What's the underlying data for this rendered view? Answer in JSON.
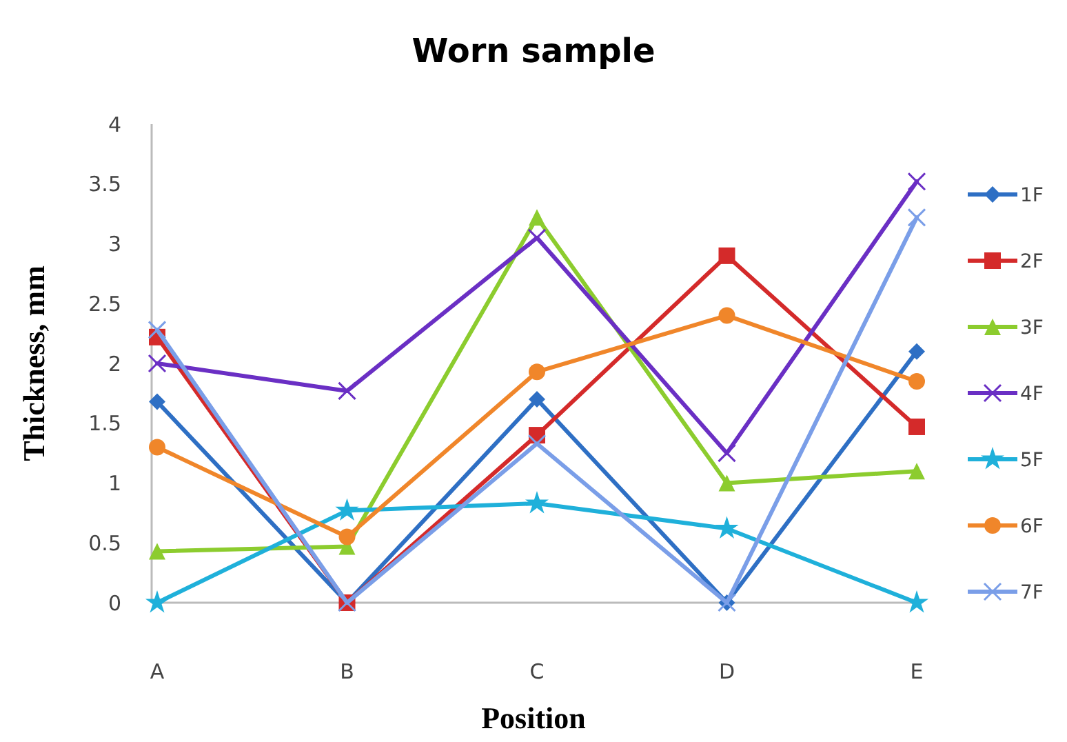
{
  "chart_data": {
    "type": "line",
    "title": "Worn sample",
    "xlabel": "Position",
    "ylabel": "Thickness, mm",
    "categories": [
      "A",
      "B",
      "C",
      "D",
      "E"
    ],
    "ylim": [
      0,
      4
    ],
    "yticks": [
      0,
      {
        "value": 0.5,
        "label": "0.5"
      },
      1,
      {
        "value": 1.5,
        "label": "1.5"
      },
      2,
      {
        "value": 2.5,
        "label": "2.5"
      },
      3,
      {
        "value": 3.5,
        "label": "3.5"
      },
      4
    ],
    "grid": false,
    "legend": "right",
    "series": [
      {
        "name": "1F",
        "color": "#2e6fc4",
        "marker": "diamond",
        "values": [
          1.68,
          0,
          1.7,
          0,
          2.1
        ]
      },
      {
        "name": "2F",
        "color": "#d42a2a",
        "marker": "square",
        "values": [
          2.22,
          0,
          1.4,
          2.9,
          1.47
        ]
      },
      {
        "name": "3F",
        "color": "#8ccc2e",
        "marker": "triangle",
        "values": [
          0.43,
          0.47,
          3.22,
          1.0,
          1.1
        ]
      },
      {
        "name": "4F",
        "color": "#6a2fc4",
        "marker": "cross",
        "values": [
          2.0,
          1.77,
          3.05,
          1.25,
          3.52
        ]
      },
      {
        "name": "5F",
        "color": "#1fb0da",
        "marker": "star",
        "values": [
          0,
          0.77,
          0.83,
          0.62,
          0
        ]
      },
      {
        "name": "6F",
        "color": "#f0862a",
        "marker": "circle",
        "values": [
          1.3,
          0.55,
          1.93,
          2.4,
          1.85
        ]
      },
      {
        "name": "7F",
        "color": "#7a9ee8",
        "marker": "cross",
        "values": [
          2.28,
          0,
          1.33,
          0,
          3.22
        ]
      }
    ]
  }
}
